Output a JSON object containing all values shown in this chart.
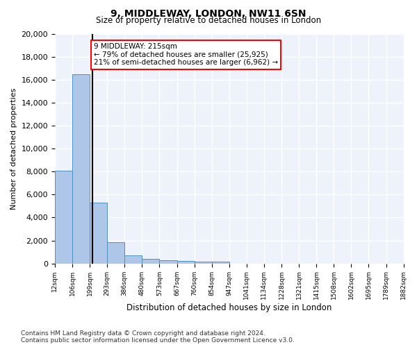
{
  "title": "9, MIDDLEWAY, LONDON, NW11 6SN",
  "subtitle": "Size of property relative to detached houses in London",
  "xlabel": "Distribution of detached houses by size in London",
  "ylabel": "Number of detached properties",
  "bar_color": "#aec6e8",
  "bar_edge_color": "#4f90c0",
  "vline_x": 215,
  "vline_color": "black",
  "annotation_text": "9 MIDDLEWAY: 215sqm\n← 79% of detached houses are smaller (25,925)\n21% of semi-detached houses are larger (6,962) →",
  "annotation_box_color": "white",
  "annotation_edge_color": "red",
  "footnote": "Contains HM Land Registry data © Crown copyright and database right 2024.\nContains public sector information licensed under the Open Government Licence v3.0.",
  "bin_edges": [
    12,
    106,
    199,
    293,
    386,
    480,
    573,
    667,
    760,
    854,
    947,
    1041,
    1134,
    1228,
    1321,
    1415,
    1508,
    1602,
    1695,
    1789,
    1882
  ],
  "bin_labels": [
    "12sqm",
    "106sqm",
    "199sqm",
    "293sqm",
    "386sqm",
    "480sqm",
    "573sqm",
    "667sqm",
    "760sqm",
    "854sqm",
    "947sqm",
    "1041sqm",
    "1134sqm",
    "1228sqm",
    "1321sqm",
    "1415sqm",
    "1508sqm",
    "1602sqm",
    "1695sqm",
    "1789sqm",
    "1882sqm"
  ],
  "counts": [
    8100,
    16500,
    5300,
    1850,
    700,
    370,
    260,
    200,
    170,
    130,
    0,
    0,
    0,
    0,
    0,
    0,
    0,
    0,
    0,
    0
  ],
  "ylim": [
    0,
    20000
  ],
  "yticks": [
    0,
    2000,
    4000,
    6000,
    8000,
    10000,
    12000,
    14000,
    16000,
    18000,
    20000
  ],
  "background_color": "#eef3fb",
  "grid_color": "white"
}
